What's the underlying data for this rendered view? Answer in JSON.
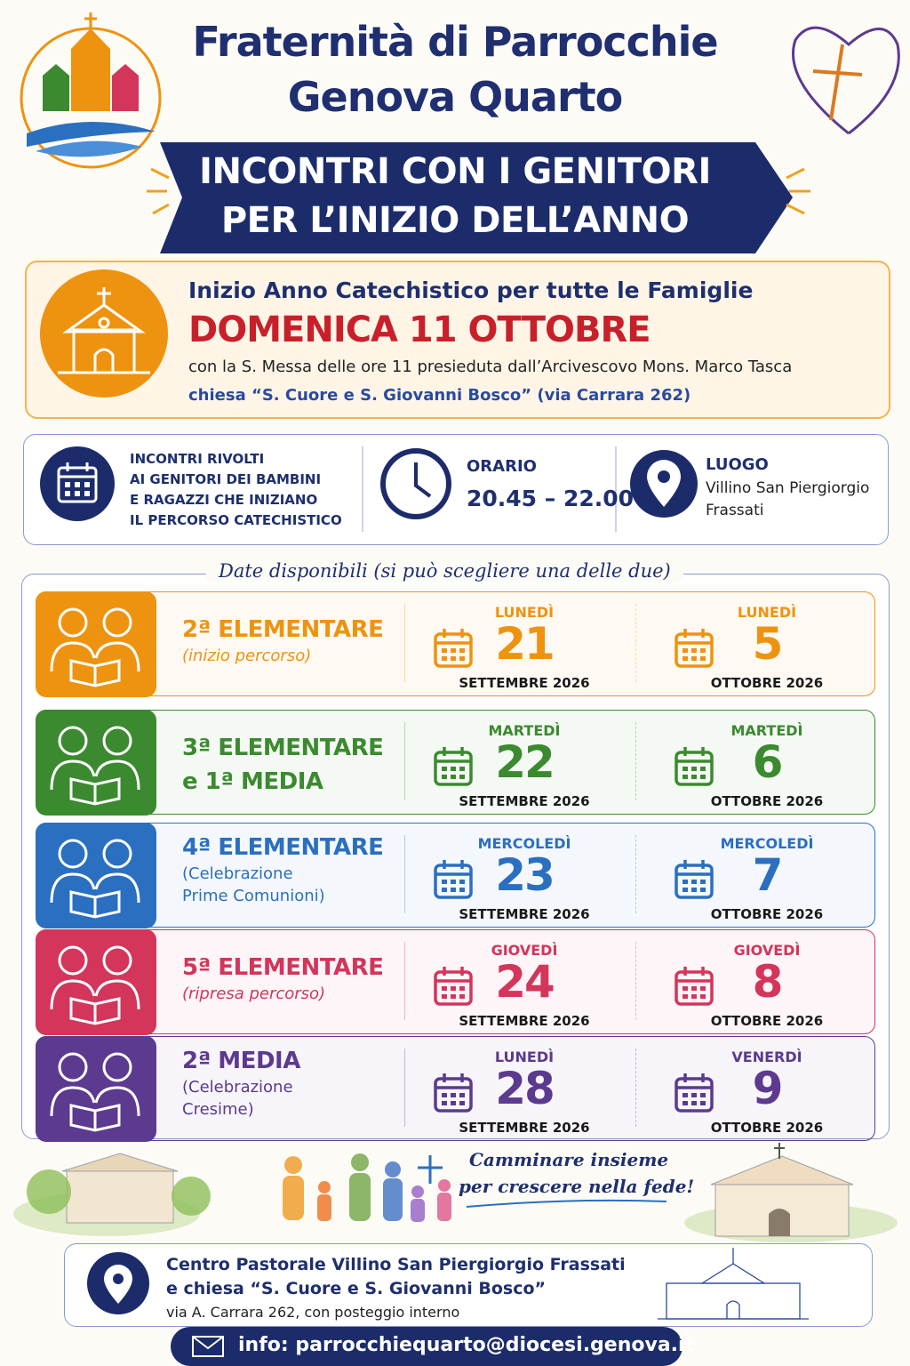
{
  "header": {
    "title": [
      "Fraternità di Parrocchie",
      "Genova Quarto"
    ],
    "banner": [
      "INCONTRI CON I GENITORI",
      "PER L’INIZIO DELL’ANNO"
    ]
  },
  "highlight": {
    "subtitle": "Inizio Anno Catechistico per tutte le Famiglie",
    "date": "DOMENICA 11 OTTOBRE",
    "mass": "con la S. Messa delle ore 11 presieduta dall’Arcivescovo Mons. Marco Tasca",
    "place": "chiesa “S. Cuore e S. Giovanni Bosco” (via Carrara 262)"
  },
  "info": {
    "audience": [
      "INCONTRI RIVOLTI",
      "AI GENITORI DEI BAMBINI",
      "E RAGAZZI CHE INIZIANO",
      "IL PERCORSO CATECHISTICO"
    ],
    "time_label": "ORARIO",
    "time": "20.45 – 22.00",
    "place_label": "LUOGO",
    "place": [
      "Villino San Piergiorgio",
      "Frassati"
    ]
  },
  "dates": {
    "heading": "Date disponibili (si può scegliere una delle due)",
    "groups": [
      {
        "title": [
          "2ª ELEMENTARE"
        ],
        "note": [
          "(inizio percorso)"
        ],
        "note_italic": true,
        "color": "#ee930f",
        "options": [
          {
            "weekday": "LUNEDÌ",
            "day": "21",
            "month": "SETTEMBRE 2026"
          },
          {
            "weekday": "LUNEDÌ",
            "day": "5",
            "month": "OTTOBRE 2026"
          }
        ]
      },
      {
        "title": [
          "3ª ELEMENTARE",
          "e 1ª MEDIA"
        ],
        "note": [],
        "note_italic": false,
        "color": "#3b8a2f",
        "options": [
          {
            "weekday": "MARTEDÌ",
            "day": "22",
            "month": "SETTEMBRE 2026"
          },
          {
            "weekday": "MARTEDÌ",
            "day": "6",
            "month": "OTTOBRE 2026"
          }
        ]
      },
      {
        "title": [
          "4ª ELEMENTARE"
        ],
        "note": [
          "(Celebrazione",
          "Prime Comunioni)"
        ],
        "note_italic": false,
        "color": "#2b6fc0",
        "options": [
          {
            "weekday": "MERCOLEDÌ",
            "day": "23",
            "month": "SETTEMBRE 2026"
          },
          {
            "weekday": "MERCOLEDÌ",
            "day": "7",
            "month": "OTTOBRE 2026"
          }
        ]
      },
      {
        "title": [
          "5ª ELEMENTARE"
        ],
        "note": [
          "(ripresa percorso)"
        ],
        "note_italic": true,
        "color": "#d3355b",
        "options": [
          {
            "weekday": "GIOVEDÌ",
            "day": "24",
            "month": "SETTEMBRE 2026"
          },
          {
            "weekday": "GIOVEDÌ",
            "day": "8",
            "month": "OTTOBRE 2026"
          }
        ]
      },
      {
        "title": [
          "2ª MEDIA"
        ],
        "note": [
          "(Celebrazione",
          "Cresime)"
        ],
        "note_italic": false,
        "color": "#5b3a8f",
        "options": [
          {
            "weekday": "LUNEDÌ",
            "day": "28",
            "month": "SETTEMBRE 2026"
          },
          {
            "weekday": "VENERDÌ",
            "day": "9",
            "month": "OTTOBRE 2026"
          }
        ]
      }
    ]
  },
  "footer": {
    "motto": [
      "Camminare insieme",
      "per crescere nella fede!"
    ],
    "address": [
      "Centro Pastorale Villino San Piergiorgio Frassati",
      "e chiesa “S. Cuore e S. Giovanni Bosco”",
      "via A. Carrara 262, con posteggio interno"
    ],
    "contact": "info: parrocchiequarto@diocesi.genova.it"
  }
}
